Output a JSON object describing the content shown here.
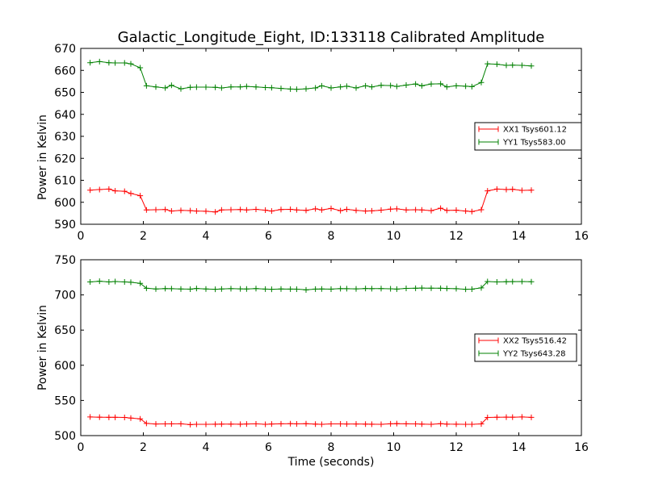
{
  "chart_data": [
    {
      "type": "line",
      "title": "Galactic_Longitude_Eight, ID:133118 Calibrated Amplitude",
      "xlabel": "",
      "ylabel": "Power in Kelvin",
      "xlim": [
        0,
        16
      ],
      "ylim": [
        590,
        670
      ],
      "xticks": [
        0,
        2,
        4,
        6,
        8,
        10,
        12,
        14,
        16
      ],
      "yticks": [
        590,
        600,
        610,
        620,
        630,
        640,
        650,
        660,
        670
      ],
      "grid": false,
      "legend_position": "right",
      "x": [
        0.3,
        0.6,
        0.9,
        1.1,
        1.4,
        1.6,
        1.9,
        2.1,
        2.4,
        2.7,
        2.9,
        3.2,
        3.5,
        3.7,
        4.0,
        4.3,
        4.5,
        4.8,
        5.1,
        5.3,
        5.6,
        5.9,
        6.1,
        6.4,
        6.7,
        6.9,
        7.2,
        7.5,
        7.7,
        8.0,
        8.3,
        8.5,
        8.8,
        9.1,
        9.3,
        9.6,
        9.9,
        10.1,
        10.4,
        10.7,
        10.9,
        11.2,
        11.5,
        11.7,
        12.0,
        12.3,
        12.5,
        12.8,
        13.0,
        13.3,
        13.6,
        13.8,
        14.1,
        14.4
      ],
      "series": [
        {
          "name": "XX1 Tsys601.12",
          "color": "#ff0000",
          "values": [
            605.5,
            605.8,
            606.0,
            605.2,
            605.0,
            604.0,
            603.0,
            596.5,
            596.6,
            596.7,
            596.0,
            596.3,
            596.2,
            596.0,
            595.9,
            595.6,
            596.5,
            596.6,
            596.7,
            596.5,
            596.8,
            596.4,
            596.0,
            596.7,
            596.8,
            596.5,
            596.3,
            597.0,
            596.5,
            597.2,
            596.2,
            596.8,
            596.3,
            596.0,
            596.1,
            596.4,
            596.9,
            597.0,
            596.5,
            596.6,
            596.5,
            596.2,
            597.3,
            596.3,
            596.4,
            596.0,
            595.8,
            596.6,
            605.2,
            606.0,
            605.8,
            605.9,
            605.4,
            605.5
          ]
        },
        {
          "name": "YY1 Tsys583.00",
          "color": "#008000",
          "values": [
            663.5,
            664.0,
            663.5,
            663.4,
            663.4,
            663.0,
            661.2,
            653.0,
            652.5,
            652.0,
            653.2,
            651.6,
            652.3,
            652.4,
            652.4,
            652.3,
            652.0,
            652.5,
            652.5,
            652.7,
            652.5,
            652.2,
            652.1,
            651.8,
            651.5,
            651.4,
            651.6,
            652.0,
            653.0,
            652.0,
            652.5,
            652.8,
            652.0,
            653.0,
            652.5,
            653.2,
            653.1,
            652.7,
            653.3,
            653.8,
            653.0,
            653.8,
            653.9,
            652.5,
            653.0,
            652.8,
            652.6,
            654.5,
            663.0,
            662.8,
            662.3,
            662.4,
            662.3,
            662.0
          ]
        }
      ]
    },
    {
      "type": "line",
      "title": "",
      "xlabel": "Time (seconds)",
      "ylabel": "Power in Kelvin",
      "xlim": [
        0,
        16
      ],
      "ylim": [
        500,
        750
      ],
      "xticks": [
        0,
        2,
        4,
        6,
        8,
        10,
        12,
        14,
        16
      ],
      "yticks": [
        500,
        550,
        600,
        650,
        700,
        750
      ],
      "grid": false,
      "legend_position": "right",
      "x": [
        0.3,
        0.6,
        0.9,
        1.1,
        1.4,
        1.6,
        1.9,
        2.1,
        2.4,
        2.7,
        2.9,
        3.2,
        3.5,
        3.7,
        4.0,
        4.3,
        4.5,
        4.8,
        5.1,
        5.3,
        5.6,
        5.9,
        6.1,
        6.4,
        6.7,
        6.9,
        7.2,
        7.5,
        7.7,
        8.0,
        8.3,
        8.5,
        8.8,
        9.1,
        9.3,
        9.6,
        9.9,
        10.1,
        10.4,
        10.7,
        10.9,
        11.2,
        11.5,
        11.7,
        12.0,
        12.3,
        12.5,
        12.8,
        13.0,
        13.3,
        13.6,
        13.8,
        14.1,
        14.4
      ],
      "series": [
        {
          "name": "XX2 Tsys516.42",
          "color": "#ff0000",
          "values": [
            526.5,
            526.2,
            526.0,
            526.0,
            525.8,
            525.0,
            523.8,
            517.3,
            516.5,
            516.6,
            516.7,
            516.8,
            515.6,
            516.1,
            516.0,
            516.2,
            516.4,
            516.3,
            516.2,
            516.5,
            516.7,
            516.0,
            516.5,
            516.8,
            516.9,
            516.7,
            516.9,
            516.4,
            516.0,
            516.6,
            516.6,
            516.5,
            516.5,
            516.3,
            516.2,
            516.1,
            516.8,
            517.0,
            516.8,
            516.6,
            516.4,
            516.1,
            516.9,
            516.3,
            516.2,
            516.0,
            516.1,
            516.6,
            525.8,
            526.1,
            526.3,
            526.2,
            526.5,
            525.9
          ]
        },
        {
          "name": "YY2 Tsys643.28",
          "color": "#008000",
          "values": [
            718.5,
            719.5,
            718.5,
            719.0,
            718.5,
            718.0,
            716.5,
            709.5,
            708.5,
            709.0,
            708.8,
            708.5,
            708.2,
            709.2,
            708.5,
            708.0,
            708.4,
            708.9,
            708.6,
            708.5,
            709.0,
            708.3,
            708.0,
            708.4,
            708.3,
            708.2,
            707.2,
            708.3,
            708.5,
            708.2,
            708.9,
            708.8,
            708.6,
            709.1,
            708.9,
            709.0,
            708.7,
            708.3,
            709.3,
            709.5,
            709.8,
            709.6,
            709.5,
            709.2,
            708.8,
            708.0,
            708.2,
            710.0,
            719.0,
            718.5,
            718.8,
            718.9,
            719.0,
            718.8
          ]
        }
      ]
    }
  ]
}
